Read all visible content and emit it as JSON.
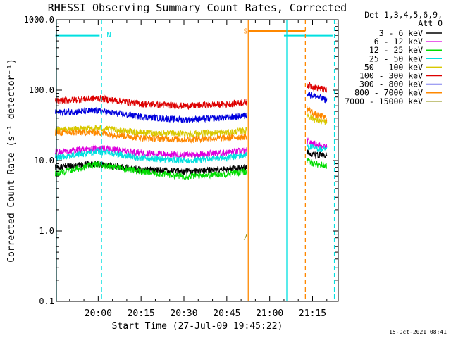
{
  "chart_data": {
    "type": "line",
    "title": "RHESSI Observing Summary Count Rates, Corrected",
    "xlabel": "Start Time (27-Jul-09 19:45:22)",
    "ylabel": "Corrected Count Rate (s⁻¹ detector⁻¹)",
    "y_scale": "log",
    "ylim": [
      0.1,
      1000
    ],
    "xlim": [
      "19:45:22",
      "21:24:00"
    ],
    "x_ticks": [
      "20:00",
      "20:15",
      "20:30",
      "20:45",
      "21:00",
      "21:15"
    ],
    "y_ticks": [
      "0.1",
      "1.0",
      "10.0",
      "100.0",
      "1000.0"
    ],
    "grid": false,
    "legend_placement": "right",
    "legend_header": [
      "Det 1,3,4,5,6,9,",
      "Att 0"
    ],
    "timestamp": "15-Oct-2021 08:41",
    "gap": [
      "20:52:30",
      "21:12:30"
    ],
    "series": [
      {
        "name": "3 - 6 keV",
        "color": "#000000",
        "x": [
          "19:45",
          "20:00",
          "20:15",
          "20:30",
          "20:45",
          "20:52",
          "21:13",
          "21:16",
          "21:20"
        ],
        "y": [
          8,
          9,
          7.5,
          7,
          7.5,
          8,
          13,
          12,
          12
        ]
      },
      {
        "name": "6 - 12 keV",
        "color": "#dd00dd",
        "x": [
          "19:45",
          "20:00",
          "20:15",
          "20:30",
          "20:45",
          "20:52",
          "21:13",
          "21:16",
          "21:20"
        ],
        "y": [
          13,
          15,
          13,
          12,
          13,
          14,
          19,
          17,
          16
        ]
      },
      {
        "name": "12 - 25 keV",
        "color": "#00dd00",
        "x": [
          "19:45",
          "20:00",
          "20:15",
          "20:30",
          "20:45",
          "20:52",
          "21:13",
          "21:16",
          "21:20"
        ],
        "y": [
          6.5,
          9,
          7,
          6,
          6.5,
          7,
          10,
          9,
          8.5
        ]
      },
      {
        "name": "25 - 50 keV",
        "color": "#00e0e0",
        "x": [
          "19:45",
          "20:00",
          "20:15",
          "20:30",
          "20:45",
          "20:52",
          "21:13",
          "21:16",
          "21:20"
        ],
        "y": [
          11,
          13.5,
          11,
          10,
          11,
          12,
          16,
          15,
          14
        ]
      },
      {
        "name": "50 - 100 keV",
        "color": "#d8c800",
        "x": [
          "19:45",
          "20:00",
          "20:15",
          "20:30",
          "20:45",
          "20:52",
          "21:13",
          "21:16",
          "21:20"
        ],
        "y": [
          27,
          29,
          25,
          24,
          25,
          27,
          45,
          38,
          35
        ]
      },
      {
        "name": "100 - 300 keV",
        "color": "#dd0000",
        "x": [
          "19:45",
          "20:00",
          "20:15",
          "20:30",
          "20:45",
          "20:52",
          "21:13",
          "21:16",
          "21:20"
        ],
        "y": [
          70,
          77,
          64,
          60,
          63,
          68,
          120,
          110,
          100
        ]
      },
      {
        "name": "300 - 800 keV",
        "color": "#0000dd",
        "x": [
          "19:45",
          "20:00",
          "20:15",
          "20:30",
          "20:45",
          "20:52",
          "21:13",
          "21:16",
          "21:20"
        ],
        "y": [
          48,
          51,
          42,
          38,
          41,
          44,
          90,
          82,
          72
        ]
      },
      {
        "name": "800 - 7000 keV",
        "color": "#ff8800",
        "x": [
          "19:45",
          "20:00",
          "20:15",
          "20:30",
          "20:45",
          "20:52",
          "21:13",
          "21:16",
          "21:20"
        ],
        "y": [
          25,
          25,
          21,
          20,
          21,
          22,
          55,
          45,
          40
        ]
      },
      {
        "name": "7000 - 15000 keV",
        "color": "#888800",
        "x": [
          "20:51",
          "20:51:30",
          "20:52"
        ],
        "y": [
          0.75,
          0.8,
          0.9
        ]
      }
    ],
    "annotations": [
      {
        "type": "bar",
        "label": "",
        "color": "#00e0e0",
        "y": 600,
        "x_start": "19:45",
        "x_end": "20:00:30"
      },
      {
        "type": "bar",
        "label": "",
        "color": "#00e0e0",
        "y": 600,
        "x_start": "21:05",
        "x_end": "21:22"
      },
      {
        "type": "bar",
        "label": "",
        "color": "#ff8800",
        "y": 700,
        "x_start": "20:52:30",
        "x_end": "21:12:30"
      },
      {
        "type": "vline",
        "label": "",
        "color": "#00e0e0",
        "style": "solid",
        "x": "19:45:22"
      },
      {
        "type": "vline",
        "label": "",
        "color": "#00e0e0",
        "style": "dashed",
        "x": "20:01:10"
      },
      {
        "type": "vline",
        "label": "",
        "color": "#ff8800",
        "style": "solid",
        "x": "20:52:30"
      },
      {
        "type": "vline",
        "label": "",
        "color": "#00e0e0",
        "style": "solid",
        "x": "21:06:00"
      },
      {
        "type": "vline",
        "label": "",
        "color": "#ff8800",
        "style": "dashed",
        "x": "21:12:30"
      },
      {
        "type": "vline",
        "label": "",
        "color": "#00e0e0",
        "style": "dashed",
        "x": "21:22:40"
      },
      {
        "type": "text",
        "label": "N",
        "color": "#00e0e0",
        "x": "20:03",
        "y": 620
      },
      {
        "type": "text",
        "label": "S",
        "color": "#ff8800",
        "x": "20:50:50",
        "y": 700
      }
    ]
  }
}
